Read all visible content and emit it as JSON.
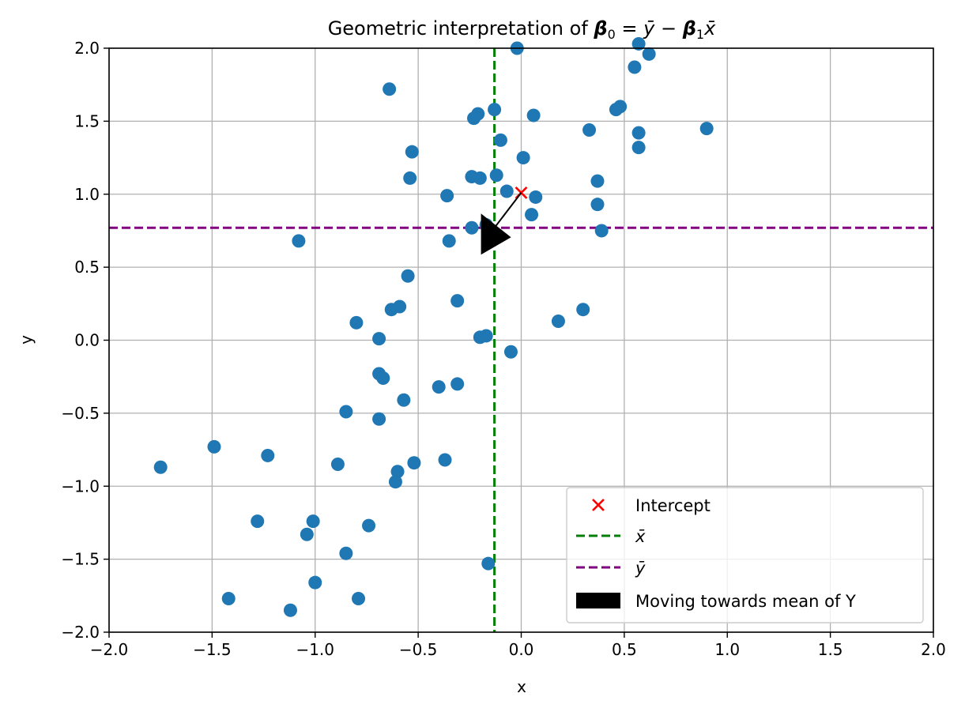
{
  "chart_data": {
    "type": "scatter",
    "title": {
      "prefix": "Geometric interpretation of ",
      "b0": "β",
      "b0_sub": "0",
      "eq": " = ",
      "ybar": "ȳ",
      "minus": " − ",
      "b1": "β",
      "b1_sub": "1",
      "xbar": "x̄"
    },
    "xlabel": "x",
    "ylabel": "y",
    "xlim": [
      -2.0,
      2.0
    ],
    "ylim": [
      -2.0,
      2.0
    ],
    "xticks": [
      -2.0,
      -1.5,
      -1.0,
      -0.5,
      0.0,
      0.5,
      1.0,
      1.5,
      2.0
    ],
    "yticks": [
      -2.0,
      -1.5,
      -1.0,
      -0.5,
      0.0,
      0.5,
      1.0,
      1.5,
      2.0
    ],
    "xtick_labels": [
      "−2.0",
      "−1.5",
      "−1.0",
      "−0.5",
      "0.0",
      "0.5",
      "1.0",
      "1.5",
      "2.0"
    ],
    "ytick_labels": [
      "−2.0",
      "−1.5",
      "−1.0",
      "−0.5",
      "0.0",
      "0.5",
      "1.0",
      "1.5",
      "2.0"
    ],
    "grid": true,
    "legend_position": "lower-right",
    "colors": {
      "points": "#1f77b4",
      "intercept": "#ff0000",
      "xbar_line": "#008000",
      "ybar_line": "#800080",
      "arrow": "#000000",
      "grid": "#b0b0b0"
    },
    "points": [
      {
        "x": -0.02,
        "y": 2.0
      },
      {
        "x": 0.57,
        "y": 2.03
      },
      {
        "x": 0.62,
        "y": 1.96
      },
      {
        "x": 0.55,
        "y": 1.87
      },
      {
        "x": -0.64,
        "y": 1.72
      },
      {
        "x": 0.48,
        "y": 1.6
      },
      {
        "x": 0.46,
        "y": 1.58
      },
      {
        "x": -0.13,
        "y": 1.58
      },
      {
        "x": -0.21,
        "y": 1.55
      },
      {
        "x": -0.23,
        "y": 1.52
      },
      {
        "x": 0.06,
        "y": 1.54
      },
      {
        "x": 0.33,
        "y": 1.44
      },
      {
        "x": 0.57,
        "y": 1.42
      },
      {
        "x": 0.9,
        "y": 1.45
      },
      {
        "x": -0.1,
        "y": 1.37
      },
      {
        "x": 0.57,
        "y": 1.32
      },
      {
        "x": -0.53,
        "y": 1.29
      },
      {
        "x": 0.01,
        "y": 1.25
      },
      {
        "x": -0.12,
        "y": 1.13
      },
      {
        "x": -0.24,
        "y": 1.12
      },
      {
        "x": -0.2,
        "y": 1.11
      },
      {
        "x": -0.54,
        "y": 1.11
      },
      {
        "x": 0.37,
        "y": 1.09
      },
      {
        "x": -0.07,
        "y": 1.02
      },
      {
        "x": -0.36,
        "y": 0.99
      },
      {
        "x": 0.07,
        "y": 0.98
      },
      {
        "x": 0.37,
        "y": 0.93
      },
      {
        "x": 0.05,
        "y": 0.86
      },
      {
        "x": -0.17,
        "y": 0.79
      },
      {
        "x": -0.24,
        "y": 0.77
      },
      {
        "x": 0.39,
        "y": 0.75
      },
      {
        "x": -1.08,
        "y": 0.68
      },
      {
        "x": -0.35,
        "y": 0.68
      },
      {
        "x": -0.55,
        "y": 0.44
      },
      {
        "x": -0.31,
        "y": 0.27
      },
      {
        "x": -0.59,
        "y": 0.23
      },
      {
        "x": -0.63,
        "y": 0.21
      },
      {
        "x": 0.3,
        "y": 0.21
      },
      {
        "x": 0.18,
        "y": 0.13
      },
      {
        "x": -0.8,
        "y": 0.12
      },
      {
        "x": -0.17,
        "y": 0.03
      },
      {
        "x": -0.2,
        "y": 0.02
      },
      {
        "x": -0.69,
        "y": 0.01
      },
      {
        "x": -0.05,
        "y": -0.08
      },
      {
        "x": -0.69,
        "y": -0.23
      },
      {
        "x": -0.67,
        "y": -0.26
      },
      {
        "x": -0.31,
        "y": -0.3
      },
      {
        "x": -0.4,
        "y": -0.32
      },
      {
        "x": -0.57,
        "y": -0.41
      },
      {
        "x": -0.85,
        "y": -0.49
      },
      {
        "x": -0.69,
        "y": -0.54
      },
      {
        "x": -1.49,
        "y": -0.73
      },
      {
        "x": -1.23,
        "y": -0.79
      },
      {
        "x": -0.37,
        "y": -0.82
      },
      {
        "x": -0.52,
        "y": -0.84
      },
      {
        "x": -0.89,
        "y": -0.85
      },
      {
        "x": -1.75,
        "y": -0.87
      },
      {
        "x": -0.6,
        "y": -0.9
      },
      {
        "x": -0.61,
        "y": -0.97
      },
      {
        "x": -1.28,
        "y": -1.24
      },
      {
        "x": -1.01,
        "y": -1.24
      },
      {
        "x": -0.74,
        "y": -1.27
      },
      {
        "x": -1.04,
        "y": -1.33
      },
      {
        "x": -0.85,
        "y": -1.46
      },
      {
        "x": -0.16,
        "y": -1.53
      },
      {
        "x": -1.0,
        "y": -1.66
      },
      {
        "x": -1.42,
        "y": -1.77
      },
      {
        "x": -0.79,
        "y": -1.77
      },
      {
        "x": -1.12,
        "y": -1.85
      }
    ],
    "intercept": {
      "x": 0.0,
      "y": 1.01
    },
    "xbar": -0.13,
    "ybar": 0.77,
    "arrow": {
      "from": [
        0.0,
        1.01
      ],
      "to": [
        -0.13,
        0.77
      ]
    },
    "legend": {
      "intercept": "Intercept",
      "xbar": "x̄",
      "ybar": "ȳ",
      "arrow": "Moving towards mean of Y"
    }
  }
}
